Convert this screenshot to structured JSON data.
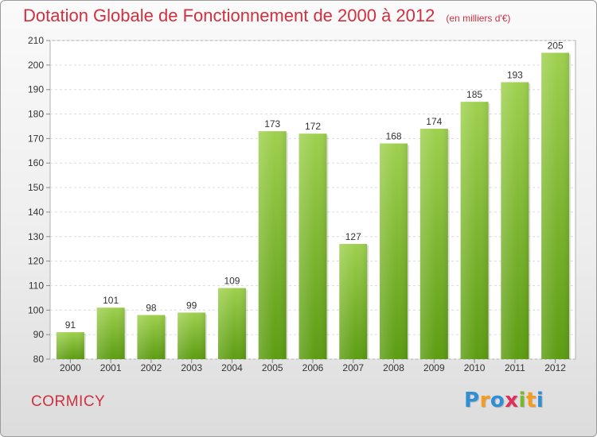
{
  "title": {
    "main": "Dotation Globale de Fonctionnement de 2000 à 2012",
    "unit": "(en milliers d'€)"
  },
  "commune": "CORMICY",
  "logo": {
    "letters": [
      "P",
      "r",
      "o",
      "x",
      "i",
      "t",
      "i"
    ],
    "colors": [
      "#2f8ed4",
      "#f39c20",
      "#2f8ed4",
      "#e0305a",
      "#7cb82f",
      "#f39c20",
      "#2f8ed4"
    ]
  },
  "chart_data": {
    "type": "bar",
    "categories": [
      "2000",
      "2001",
      "2002",
      "2003",
      "2004",
      "2005",
      "2006",
      "2007",
      "2008",
      "2009",
      "2010",
      "2011",
      "2012"
    ],
    "values": [
      91,
      101,
      98,
      99,
      109,
      173,
      172,
      127,
      168,
      174,
      185,
      193,
      205
    ],
    "ylim": [
      80,
      210
    ],
    "yticks": [
      80,
      90,
      100,
      110,
      120,
      130,
      140,
      150,
      160,
      170,
      180,
      190,
      200,
      210
    ],
    "grid": true,
    "bar_color_top": "#9ed04e",
    "bar_color_bottom": "#5c9c12"
  }
}
